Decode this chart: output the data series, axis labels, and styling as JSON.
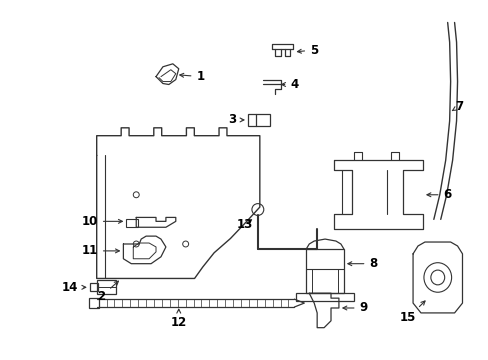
{
  "background_color": "#ffffff",
  "line_color": "#333333",
  "label_color": "#000000",
  "figsize": [
    4.89,
    3.6
  ],
  "dpi": 100
}
